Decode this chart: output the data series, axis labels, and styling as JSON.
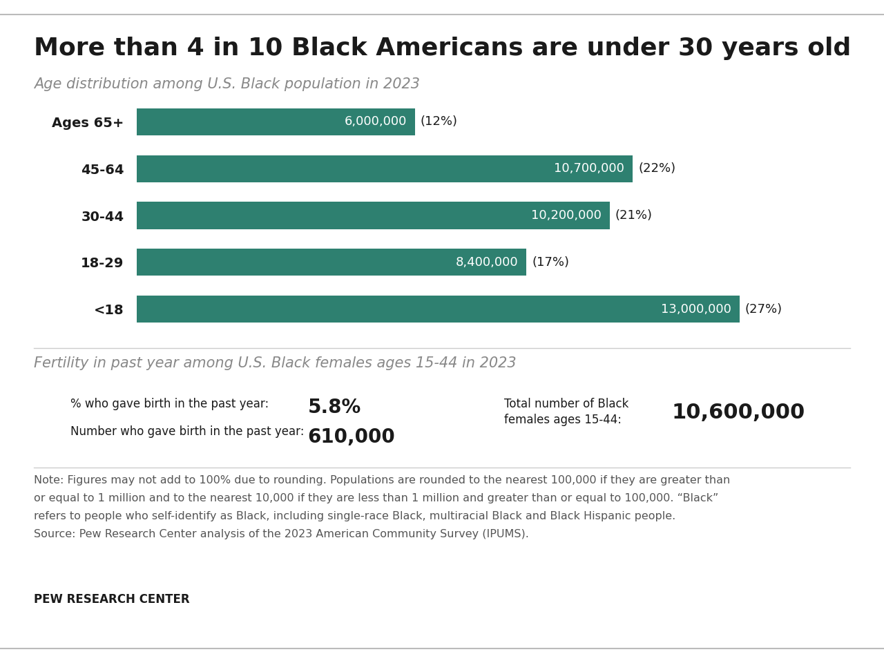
{
  "title": "More than 4 in 10 Black Americans are under 30 years old",
  "subtitle1": "Age distribution among U.S. Black population in 2023",
  "subtitle2": "Fertility in past year among U.S. Black females ages 15-44 in 2023",
  "categories": [
    "Ages 65+",
    "45-64",
    "30-44",
    "18-29",
    "<18"
  ],
  "values": [
    6000000,
    10700000,
    10200000,
    8400000,
    13000000
  ],
  "percentages": [
    "(12%)",
    "(22%)",
    "(21%)",
    "(17%)",
    "(27%)"
  ],
  "bar_color": "#2E8070",
  "bar_labels": [
    "6,000,000",
    "10,700,000",
    "10,200,000",
    "8,400,000",
    "13,000,000"
  ],
  "xlim": [
    0,
    14500000
  ],
  "fertility_label1": "% who gave birth in the past year:",
  "fertility_label2": "Number who gave birth in the past year:",
  "fertility_value1": "5.8%",
  "fertility_value2": "610,000",
  "total_label_line1": "Total number of Black",
  "total_label_line2": "females ages 15-44:",
  "total_value": "10,600,000",
  "note_line1": "Note: Figures may not add to 100% due to rounding. Populations are rounded to the nearest 100,000 if they are greater than",
  "note_line2": "or equal to 1 million and to the nearest 10,000 if they are less than 1 million and greater than or equal to 100,000. “Black”",
  "note_line3": "refers to people who self-identify as Black, including single-race Black, multiracial Black and Black Hispanic people.",
  "note_line4": "Source: Pew Research Center analysis of the 2023 American Community Survey (IPUMS).",
  "source_label": "PEW RESEARCH CENTER",
  "background_color": "#ffffff",
  "text_color": "#1a1a1a",
  "note_color": "#555555",
  "subtitle_color": "#888888",
  "title_fontsize": 26,
  "subtitle_fontsize": 15,
  "category_fontsize": 14,
  "bar_label_fontsize": 13,
  "note_fontsize": 11.5
}
